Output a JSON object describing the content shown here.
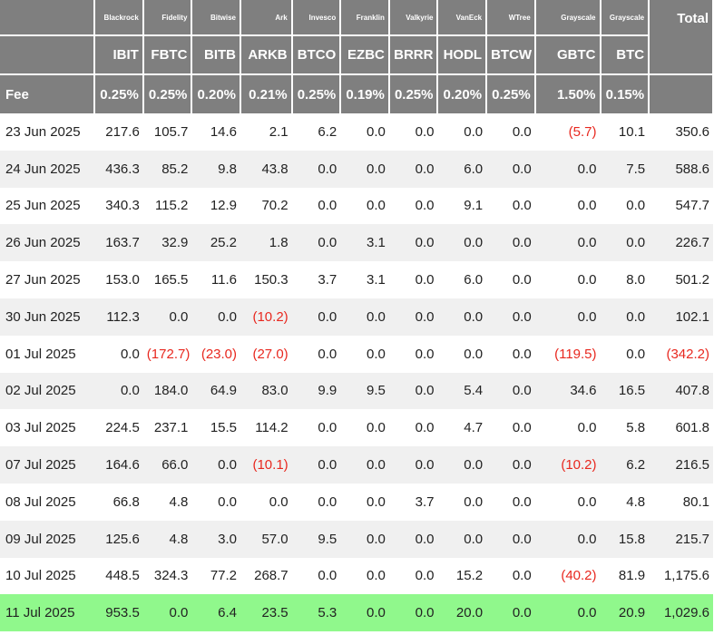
{
  "columns": [
    {
      "issuer": "Blackrock",
      "ticker": "IBIT",
      "fee": "0.25%"
    },
    {
      "issuer": "Fidelity",
      "ticker": "FBTC",
      "fee": "0.25%"
    },
    {
      "issuer": "Bitwise",
      "ticker": "BITB",
      "fee": "0.20%"
    },
    {
      "issuer": "Ark",
      "ticker": "ARKB",
      "fee": "0.21%"
    },
    {
      "issuer": "Invesco",
      "ticker": "BTCO",
      "fee": "0.25%"
    },
    {
      "issuer": "Franklin",
      "ticker": "EZBC",
      "fee": "0.19%"
    },
    {
      "issuer": "Valkyrie",
      "ticker": "BRRR",
      "fee": "0.25%"
    },
    {
      "issuer": "VanEck",
      "ticker": "HODL",
      "fee": "0.20%"
    },
    {
      "issuer": "WTree",
      "ticker": "BTCW",
      "fee": "0.25%"
    },
    {
      "issuer": "Grayscale",
      "ticker": "GBTC",
      "fee": "1.50%"
    },
    {
      "issuer": "Grayscale",
      "ticker": "BTC",
      "fee": "0.15%"
    }
  ],
  "total_label": "Total",
  "fee_label": "Fee",
  "rows": [
    {
      "date": "23 Jun 2025",
      "values": [
        "217.6",
        "105.7",
        "14.6",
        "2.1",
        "6.2",
        "0.0",
        "0.0",
        "0.0",
        "0.0",
        "(5.7)",
        "10.1"
      ],
      "total": "350.6"
    },
    {
      "date": "24 Jun 2025",
      "values": [
        "436.3",
        "85.2",
        "9.8",
        "43.8",
        "0.0",
        "0.0",
        "0.0",
        "6.0",
        "0.0",
        "0.0",
        "7.5"
      ],
      "total": "588.6"
    },
    {
      "date": "25 Jun 2025",
      "values": [
        "340.3",
        "115.2",
        "12.9",
        "70.2",
        "0.0",
        "0.0",
        "0.0",
        "9.1",
        "0.0",
        "0.0",
        "0.0"
      ],
      "total": "547.7"
    },
    {
      "date": "26 Jun 2025",
      "values": [
        "163.7",
        "32.9",
        "25.2",
        "1.8",
        "0.0",
        "3.1",
        "0.0",
        "0.0",
        "0.0",
        "0.0",
        "0.0"
      ],
      "total": "226.7"
    },
    {
      "date": "27 Jun 2025",
      "values": [
        "153.0",
        "165.5",
        "11.6",
        "150.3",
        "3.7",
        "3.1",
        "0.0",
        "6.0",
        "0.0",
        "0.0",
        "8.0"
      ],
      "total": "501.2"
    },
    {
      "date": "30 Jun 2025",
      "values": [
        "112.3",
        "0.0",
        "0.0",
        "(10.2)",
        "0.0",
        "0.0",
        "0.0",
        "0.0",
        "0.0",
        "0.0",
        "0.0"
      ],
      "total": "102.1"
    },
    {
      "date": "01 Jul 2025",
      "values": [
        "0.0",
        "(172.7)",
        "(23.0)",
        "(27.0)",
        "0.0",
        "0.0",
        "0.0",
        "0.0",
        "0.0",
        "(119.5)",
        "0.0"
      ],
      "total": "(342.2)"
    },
    {
      "date": "02 Jul 2025",
      "values": [
        "0.0",
        "184.0",
        "64.9",
        "83.0",
        "9.9",
        "9.5",
        "0.0",
        "5.4",
        "0.0",
        "34.6",
        "16.5"
      ],
      "total": "407.8"
    },
    {
      "date": "03 Jul 2025",
      "values": [
        "224.5",
        "237.1",
        "15.5",
        "114.2",
        "0.0",
        "0.0",
        "0.0",
        "4.7",
        "0.0",
        "0.0",
        "5.8"
      ],
      "total": "601.8"
    },
    {
      "date": "07 Jul 2025",
      "values": [
        "164.6",
        "66.0",
        "0.0",
        "(10.1)",
        "0.0",
        "0.0",
        "0.0",
        "0.0",
        "0.0",
        "(10.2)",
        "6.2"
      ],
      "total": "216.5"
    },
    {
      "date": "08 Jul 2025",
      "values": [
        "66.8",
        "4.8",
        "0.0",
        "0.0",
        "0.0",
        "0.0",
        "3.7",
        "0.0",
        "0.0",
        "0.0",
        "4.8"
      ],
      "total": "80.1"
    },
    {
      "date": "09 Jul 2025",
      "values": [
        "125.6",
        "4.8",
        "3.0",
        "57.0",
        "9.5",
        "0.0",
        "0.0",
        "0.0",
        "0.0",
        "0.0",
        "15.8"
      ],
      "total": "215.7"
    },
    {
      "date": "10 Jul 2025",
      "values": [
        "448.5",
        "324.3",
        "77.2",
        "268.7",
        "0.0",
        "0.0",
        "0.0",
        "15.2",
        "0.0",
        "(40.2)",
        "81.9"
      ],
      "total": "1,175.6"
    },
    {
      "date": "11 Jul 2025",
      "values": [
        "953.5",
        "0.0",
        "6.4",
        "23.5",
        "5.3",
        "0.0",
        "0.0",
        "20.0",
        "0.0",
        "0.0",
        "20.9"
      ],
      "total": "1,029.6",
      "highlight": true
    }
  ],
  "colors": {
    "header_bg": "#7f7f7f",
    "alt_row_bg": "#f0f0f0",
    "highlight_bg": "#90f88c",
    "negative": "#e8281f"
  }
}
